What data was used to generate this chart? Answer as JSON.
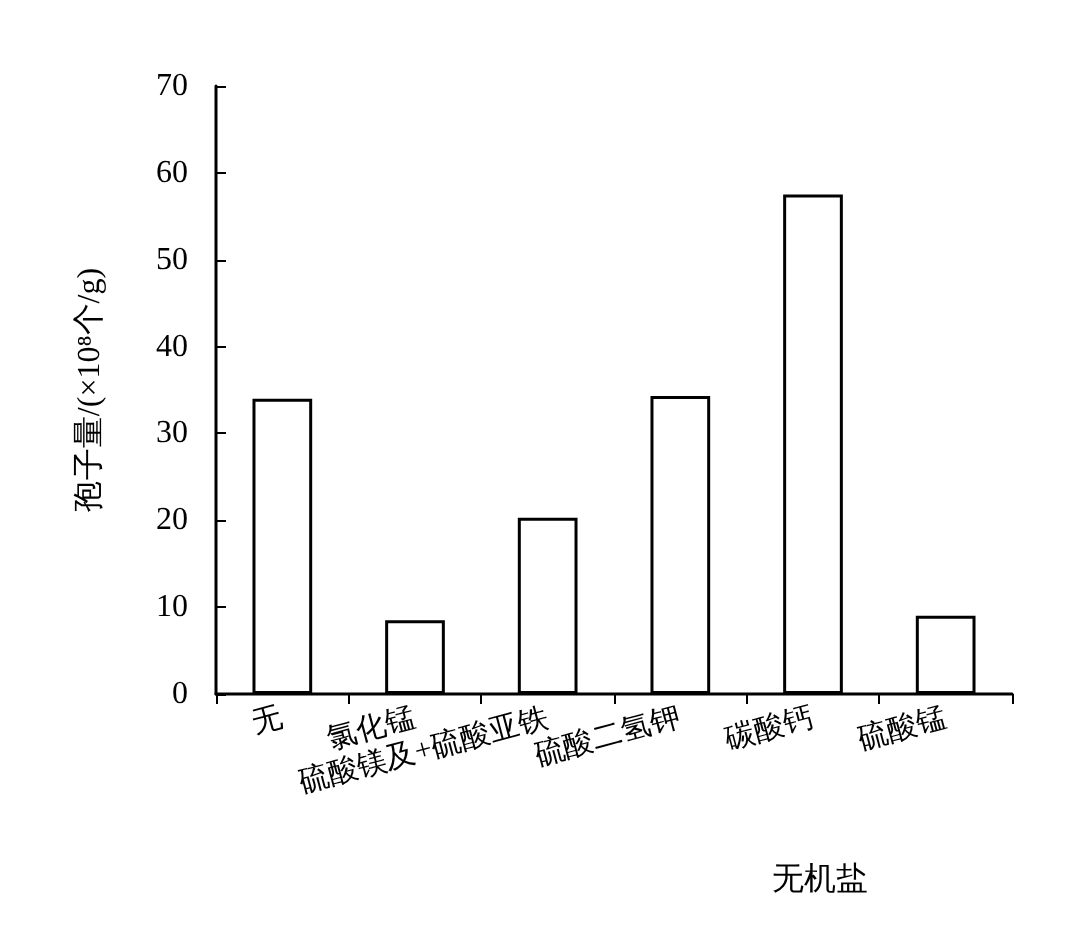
{
  "chart_data": {
    "type": "bar",
    "xlabel": "无机盐",
    "ylabel": "孢子量/(×10⁸个/g)",
    "categories": [
      "无",
      "氯化锰",
      "硫酸镁及+硫酸亚铁",
      "硫酸二氢钾",
      "碳酸钙",
      "硫酸锰"
    ],
    "values": [
      34,
      8.5,
      20.3,
      34.3,
      57.5,
      9
    ],
    "color": "#ffffff",
    "ylim": [
      0,
      70
    ],
    "yticks": [
      0,
      10,
      20,
      30,
      40,
      50,
      60,
      70
    ],
    "grid": false
  }
}
